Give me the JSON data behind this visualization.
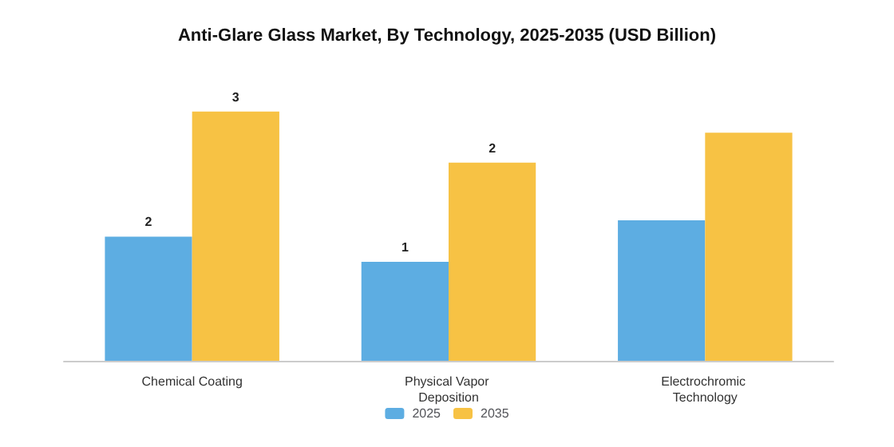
{
  "chart_data": {
    "type": "bar",
    "title": "Anti-Glare Glass Market, By Technology, 2025-2035 (USD Billion)",
    "tick_labels": "x",
    "categories": [
      "Chemical Coating",
      "Physical Vapor Deposition",
      "Electrochromic Technology"
    ],
    "series": [
      {
        "name": "2025",
        "color": "#5dade2",
        "values": [
          1.53,
          1.22,
          1.73
        ],
        "value_labels": [
          "2",
          "1",
          null
        ]
      },
      {
        "name": "2035",
        "color": "#f7c244",
        "values": [
          3.07,
          2.44,
          2.81
        ],
        "value_labels": [
          "3",
          "2",
          null
        ]
      }
    ],
    "legend": "bottom"
  }
}
